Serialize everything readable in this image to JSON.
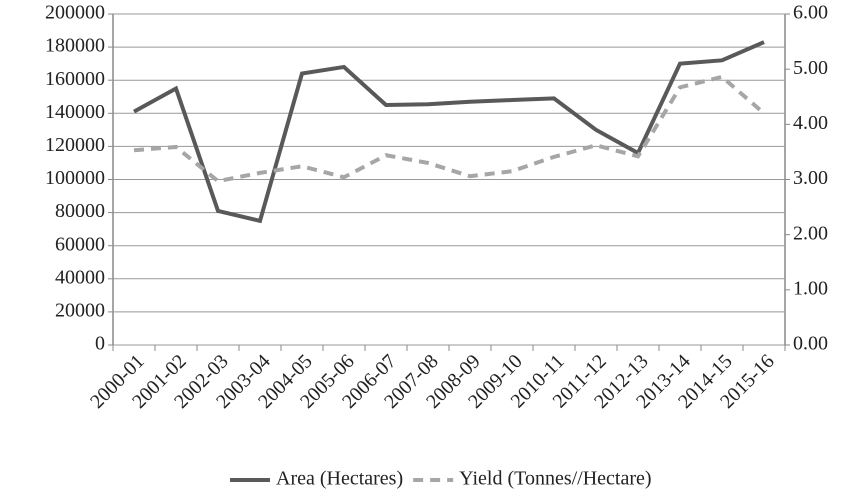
{
  "chart_data": {
    "type": "line",
    "categories": [
      "2000-01",
      "2001-02",
      "2002-03",
      "2003-04",
      "2004-05",
      "2005-06",
      "2006-07",
      "2007-08",
      "2008-09",
      "2009-10",
      "2010-11",
      "2011-12",
      "2012-13",
      "2013-14",
      "2014-15",
      "2015-16"
    ],
    "series": [
      {
        "name": "Area (Hectares)",
        "color": "#595959",
        "dash": "solid",
        "values": [
          141000,
          155000,
          81000,
          75000,
          164000,
          168000,
          145000,
          145500,
          147000,
          148000,
          149000,
          130000,
          116000,
          170000,
          172000,
          183000
        ]
      },
      {
        "name": "Yield (Tonnes//Hectare)",
        "color": "#a6a6a6",
        "dash": "dashed",
        "axis": "y2",
        "values": [
          3.53,
          3.59,
          2.97,
          3.12,
          3.24,
          3.04,
          3.44,
          3.3,
          3.06,
          3.15,
          3.41,
          3.62,
          3.42,
          4.67,
          4.86,
          4.2
        ]
      }
    ],
    "ylim": [
      0,
      200000
    ],
    "yticks": [
      0,
      20000,
      40000,
      60000,
      80000,
      100000,
      120000,
      140000,
      160000,
      180000,
      200000
    ],
    "y2lim": [
      0,
      6
    ],
    "y2ticks": [
      {
        "value": 0,
        "label": "0.00"
      },
      {
        "value": 1,
        "label": "1.00"
      },
      {
        "value": 2,
        "label": "2.00"
      },
      {
        "value": 3,
        "label": "3.00"
      },
      {
        "value": 4,
        "label": "4.00"
      },
      {
        "value": 5,
        "label": "5.00"
      },
      {
        "value": 6,
        "label": "6.00"
      }
    ],
    "grid": true,
    "legend": "bottom"
  }
}
